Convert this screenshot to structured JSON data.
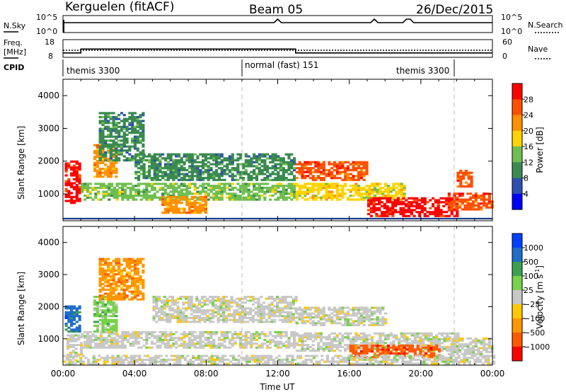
{
  "header": {
    "station": "Kerguelen (fitACF)",
    "beam": "Beam 05",
    "date": "26/Dec/2015"
  },
  "nsky_panel": {
    "left_label": "N.Sky",
    "right_label": "N.Search",
    "left_ticks": [
      "10^5",
      "10^0"
    ],
    "right_ticks": [
      "10^5",
      "10^0"
    ]
  },
  "freq_panel": {
    "left_label_1": "Freq.",
    "left_label_2": "[MHz]",
    "right_label": "Nave",
    "left_ticks": [
      "18",
      "8"
    ],
    "right_ticks": [
      "60",
      "0"
    ],
    "freq_steps": [
      {
        "from": 0.0,
        "to": 1.0,
        "value": 10.5
      },
      {
        "from": 1.0,
        "to": 13.0,
        "value": 12.7
      },
      {
        "from": 13.0,
        "to": 24.0,
        "value": 10.5
      }
    ],
    "nave_level": 12.0
  },
  "cpid": {
    "label": "CPID",
    "segments": [
      {
        "from": 0.0,
        "to": 10.0,
        "name": "themis 3300"
      },
      {
        "from": 10.0,
        "to": 22.0,
        "name": "normal (fast) 151"
      },
      {
        "from": 19.0,
        "to": 22.0,
        "name": "themis 3300"
      }
    ]
  },
  "chart_data": [
    {
      "type": "heatmap",
      "name": "power",
      "ylabel": "Slant Range [km]",
      "yticks": [
        "1000",
        "2000",
        "3000",
        "4000"
      ],
      "ylim": [
        180,
        4500
      ],
      "xlim": [
        0,
        24
      ],
      "colorbar_label": "Power [dB]",
      "colorbar_ticks": [
        "4",
        "8",
        "12",
        "16",
        "20",
        "24",
        "28"
      ],
      "colorbar_colors": [
        "#0000ff",
        "#3050b0",
        "#3a8a50",
        "#6fbf50",
        "#ffd400",
        "#ff9000",
        "#ff5000",
        "#ff0000"
      ],
      "data_regions": [
        {
          "t0": 0.1,
          "t1": 1.0,
          "r0": 700,
          "r1": 2000,
          "level": 28
        },
        {
          "t0": 1.7,
          "t1": 3.0,
          "r0": 1500,
          "r1": 2500,
          "level": 20
        },
        {
          "t0": 2.0,
          "t1": 4.5,
          "r0": 2000,
          "r1": 3500,
          "level": 10
        },
        {
          "t0": 1.0,
          "t1": 13.0,
          "r0": 800,
          "r1": 1300,
          "level": 14
        },
        {
          "t0": 4.0,
          "t1": 13.0,
          "r0": 1400,
          "r1": 2200,
          "level": 10
        },
        {
          "t0": 5.5,
          "t1": 8.0,
          "r0": 400,
          "r1": 900,
          "level": 22
        },
        {
          "t0": 13.0,
          "t1": 17.0,
          "r0": 1400,
          "r1": 2000,
          "level": 26
        },
        {
          "t0": 13.0,
          "t1": 19.0,
          "r0": 800,
          "r1": 1300,
          "level": 16
        },
        {
          "t0": 17.0,
          "t1": 22.0,
          "r0": 300,
          "r1": 900,
          "level": 28
        },
        {
          "t0": 21.5,
          "t1": 24.0,
          "r0": 500,
          "r1": 1000,
          "level": 24
        },
        {
          "t0": 22.0,
          "t1": 22.8,
          "r0": 1200,
          "r1": 1700,
          "level": 24
        }
      ]
    },
    {
      "type": "heatmap",
      "name": "velocity",
      "ylabel": "Slant Range [km]",
      "yticks": [
        "1000",
        "2000",
        "3000",
        "4000"
      ],
      "ylim": [
        180,
        4500
      ],
      "xlim": [
        0,
        24
      ],
      "xticks": [
        "00:00",
        "04:00",
        "08:00",
        "12:00",
        "16:00",
        "20:00",
        "00:00"
      ],
      "xlabel": "Time UT",
      "colorbar_label": "Velocity [m s^-1]",
      "colorbar_ticks": [
        "1000",
        "500",
        "100",
        "25",
        "−25",
        "−100",
        "−500",
        "−1000"
      ],
      "colorbar_colors": [
        "#0040ff",
        "#1e6ec8",
        "#3ca050",
        "#78d24a",
        "#c8c8c8",
        "#ffc800",
        "#ff9600",
        "#ff5a00",
        "#ff0000"
      ],
      "data_regions": [
        {
          "t0": 0.1,
          "t1": 1.0,
          "r0": 1200,
          "r1": 2000,
          "level": 1000
        },
        {
          "t0": 0.2,
          "t1": 1.0,
          "r0": 300,
          "r1": 1100,
          "level": 0
        },
        {
          "t0": 1.7,
          "t1": 3.0,
          "r0": 1200,
          "r1": 2300,
          "level": 100
        },
        {
          "t0": 2.0,
          "t1": 4.5,
          "r0": 2200,
          "r1": 3500,
          "level": -100
        },
        {
          "t0": 1.0,
          "t1": 13.0,
          "r0": 700,
          "r1": 1200,
          "level": 0
        },
        {
          "t0": 5.0,
          "t1": 13.0,
          "r0": 1500,
          "r1": 2300,
          "level": 0
        },
        {
          "t0": 13.0,
          "t1": 18.0,
          "r0": 1400,
          "r1": 2000,
          "level": 0
        },
        {
          "t0": 13.0,
          "t1": 22.0,
          "r0": 600,
          "r1": 1200,
          "level": 0
        },
        {
          "t0": 16.0,
          "t1": 21.0,
          "r0": 400,
          "r1": 800,
          "level": -500
        },
        {
          "t0": 21.5,
          "t1": 24.0,
          "r0": 500,
          "r1": 1000,
          "level": 0
        },
        {
          "t0": 0.0,
          "t1": 24.0,
          "r0": 200,
          "r1": 450,
          "level": 25
        }
      ]
    }
  ]
}
